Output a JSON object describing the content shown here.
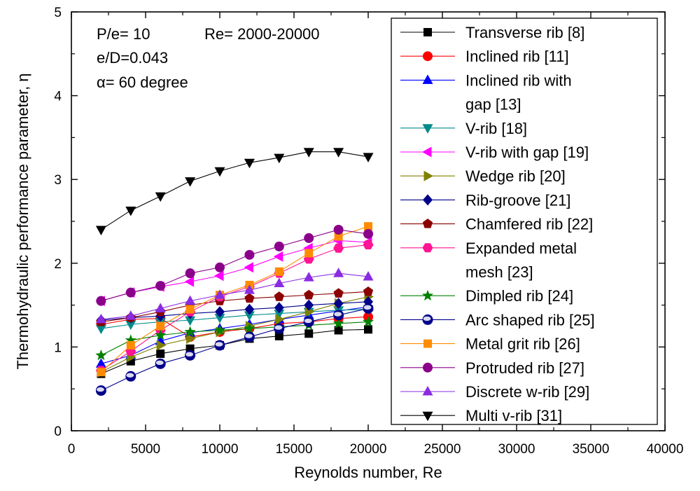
{
  "chart_data": {
    "type": "line",
    "title": "",
    "xlabel": "Reynolds number, Re",
    "ylabel": "Thermohydraulic performance parameter, η",
    "xlim": [
      0,
      40000
    ],
    "ylim": [
      0,
      5
    ],
    "xticks": [
      "0",
      "5000",
      "10000",
      "15000",
      "20000",
      "25000",
      "30000",
      "35000",
      "40000"
    ],
    "yticks": [
      "0",
      "1",
      "2",
      "3",
      "4",
      "5"
    ],
    "grid": false,
    "legend_position": "top-right",
    "annotations": [
      "P/e= 10",
      "Re= 2000-20000",
      "e/D=0.043",
      "α= 60 degree"
    ],
    "series": [
      {
        "name": "Transverse rib [8]",
        "legend_lines": [
          "Transverse rib [8]"
        ],
        "marker": "square",
        "color": "#000000",
        "x": [
          2000,
          4000,
          6000,
          8000,
          10000,
          12000,
          14000,
          16000,
          18000,
          20000
        ],
        "y": [
          0.68,
          0.83,
          0.92,
          0.98,
          1.02,
          1.1,
          1.13,
          1.16,
          1.2,
          1.21
        ]
      },
      {
        "name": "Inclined rib [11]",
        "legend_lines": [
          "Inclined rib [11]"
        ],
        "marker": "circle",
        "color": "#ff0000",
        "x": [
          2000,
          4000,
          6000,
          8000,
          10000,
          12000,
          14000,
          16000,
          18000,
          20000
        ],
        "y": [
          1.27,
          1.33,
          1.34,
          1.12,
          1.18,
          1.22,
          1.28,
          1.3,
          1.34,
          1.36
        ]
      },
      {
        "name": "Inclined rib with gap [13]",
        "legend_lines": [
          "Inclined rib with",
          "gap [13]"
        ],
        "marker": "triangle-up",
        "color": "#0000ff",
        "x": [
          2000,
          4000,
          6000,
          8000,
          10000,
          12000,
          14000,
          16000,
          18000,
          20000
        ],
        "y": [
          0.8,
          0.9,
          1.07,
          1.17,
          1.22,
          1.27,
          1.33,
          1.38,
          1.43,
          1.48
        ]
      },
      {
        "name": "V-rib [18]",
        "legend_lines": [
          "V-rib [18]"
        ],
        "marker": "triangle-down",
        "color": "#008b8b",
        "x": [
          2000,
          4000,
          6000,
          8000,
          10000,
          12000,
          14000,
          16000,
          18000,
          20000
        ],
        "y": [
          1.22,
          1.27,
          1.3,
          1.32,
          1.35,
          1.38,
          1.4,
          1.42,
          1.44,
          1.45
        ]
      },
      {
        "name": "V-rib with gap [19]",
        "legend_lines": [
          "V-rib with gap [19]"
        ],
        "marker": "triangle-left",
        "color": "#ff00ff",
        "x": [
          2000,
          4000,
          6000,
          8000,
          10000,
          12000,
          14000,
          16000,
          18000,
          20000
        ],
        "y": [
          1.55,
          1.65,
          1.72,
          1.78,
          1.85,
          1.95,
          2.08,
          2.18,
          2.27,
          2.25
        ]
      },
      {
        "name": "Wedge rib [20]",
        "legend_lines": [
          "Wedge rib [20]"
        ],
        "marker": "triangle-right",
        "color": "#808000",
        "x": [
          2000,
          4000,
          6000,
          8000,
          10000,
          12000,
          14000,
          16000,
          18000,
          20000
        ],
        "y": [
          0.7,
          0.88,
          1.02,
          1.1,
          1.18,
          1.25,
          1.33,
          1.42,
          1.52,
          1.6
        ]
      },
      {
        "name": "Rib-groove [21]",
        "legend_lines": [
          "Rib-groove [21]"
        ],
        "marker": "diamond",
        "color": "#00008b",
        "x": [
          2000,
          4000,
          6000,
          8000,
          10000,
          12000,
          14000,
          16000,
          18000,
          20000
        ],
        "y": [
          1.32,
          1.35,
          1.37,
          1.4,
          1.42,
          1.45,
          1.47,
          1.5,
          1.52,
          1.54
        ]
      },
      {
        "name": "Chamfered rib [22]",
        "legend_lines": [
          "Chamfered rib [22]"
        ],
        "marker": "pentagon",
        "color": "#8b0000",
        "x": [
          2000,
          4000,
          6000,
          8000,
          10000,
          12000,
          14000,
          16000,
          18000,
          20000
        ],
        "y": [
          1.3,
          1.35,
          1.42,
          1.5,
          1.55,
          1.58,
          1.6,
          1.62,
          1.64,
          1.66
        ]
      },
      {
        "name": "Expanded metal mesh [23]",
        "legend_lines": [
          "Expanded metal",
          "mesh [23]"
        ],
        "marker": "hexagon",
        "color": "#ff1493",
        "x": [
          2000,
          4000,
          6000,
          8000,
          10000,
          12000,
          14000,
          16000,
          18000,
          20000
        ],
        "y": [
          0.72,
          0.95,
          1.2,
          1.42,
          1.6,
          1.72,
          1.88,
          2.05,
          2.18,
          2.22
        ]
      },
      {
        "name": "Dimpled rib [24]",
        "legend_lines": [
          "Dimpled rib [24]"
        ],
        "marker": "star",
        "color": "#008000",
        "x": [
          2000,
          4000,
          6000,
          8000,
          10000,
          12000,
          14000,
          16000,
          18000,
          20000
        ],
        "y": [
          0.9,
          1.08,
          1.14,
          1.18,
          1.2,
          1.22,
          1.24,
          1.26,
          1.28,
          1.3
        ]
      },
      {
        "name": "Arc shaped rib [25]",
        "legend_lines": [
          "Arc shaped rib [25]"
        ],
        "marker": "sphere",
        "color": "#00008b",
        "x": [
          2000,
          4000,
          6000,
          8000,
          10000,
          12000,
          14000,
          16000,
          18000,
          20000
        ],
        "y": [
          0.48,
          0.65,
          0.8,
          0.9,
          1.02,
          1.12,
          1.22,
          1.3,
          1.38,
          1.46
        ]
      },
      {
        "name": "Metal grit rib [26]",
        "legend_lines": [
          "Metal grit rib [26]"
        ],
        "marker": "square",
        "color": "#ff8c00",
        "x": [
          2000,
          4000,
          6000,
          8000,
          10000,
          12000,
          14000,
          16000,
          18000,
          20000
        ],
        "y": [
          0.7,
          1.02,
          1.25,
          1.45,
          1.62,
          1.74,
          1.9,
          2.12,
          2.32,
          2.44
        ]
      },
      {
        "name": "Protruded rib [27]",
        "legend_lines": [
          "Protruded rib [27]"
        ],
        "marker": "circle",
        "color": "#8b008b",
        "x": [
          2000,
          4000,
          6000,
          8000,
          10000,
          12000,
          14000,
          16000,
          18000,
          20000
        ],
        "y": [
          1.55,
          1.65,
          1.73,
          1.88,
          1.95,
          2.1,
          2.2,
          2.3,
          2.4,
          2.35
        ]
      },
      {
        "name": "Discrete w-rib [29]",
        "legend_lines": [
          "Discrete w-rib [29]"
        ],
        "marker": "triangle-up",
        "color": "#8a2be2",
        "x": [
          2000,
          4000,
          6000,
          8000,
          10000,
          12000,
          14000,
          16000,
          18000,
          20000
        ],
        "y": [
          1.33,
          1.37,
          1.46,
          1.55,
          1.62,
          1.68,
          1.76,
          1.83,
          1.88,
          1.84
        ]
      },
      {
        "name": "Multi v-rib [31]",
        "legend_lines": [
          "Multi v-rib [31]"
        ],
        "marker": "triangle-down",
        "color": "#000000",
        "x": [
          2000,
          4000,
          6000,
          8000,
          10000,
          12000,
          14000,
          16000,
          18000,
          20000
        ],
        "y": [
          2.4,
          2.63,
          2.8,
          2.98,
          3.1,
          3.2,
          3.26,
          3.33,
          3.33,
          3.27
        ]
      }
    ]
  }
}
